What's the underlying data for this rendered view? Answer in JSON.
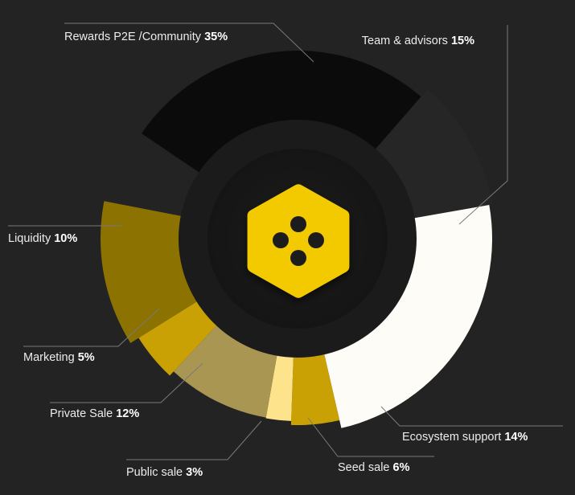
{
  "chart_data": {
    "type": "pie",
    "variant": "donut",
    "slices": [
      {
        "label": "Rewards P2E /Community",
        "value": 35,
        "display": "35%",
        "color": "#0b0b0b"
      },
      {
        "label": "Team & advisors",
        "value": 15,
        "display": "15%",
        "color": "#262626"
      },
      {
        "label": "Ecosystem support",
        "value": 14,
        "display": "14%",
        "color": "#fdfcf6"
      },
      {
        "label": "Seed sale",
        "value": 6,
        "display": "6%",
        "color": "#c9a105"
      },
      {
        "label": "Public sale",
        "value": 3,
        "display": "3%",
        "color": "#fde38b"
      },
      {
        "label": "Private Sale",
        "value": 12,
        "display": "12%",
        "color": "#a89652"
      },
      {
        "label": "Marketing",
        "value": 5,
        "display": "5%",
        "color": "#c9a105"
      },
      {
        "label": "Liquidity",
        "value": 10,
        "display": "10%",
        "color": "#8c7200"
      }
    ]
  },
  "logo": {
    "name": "hexagon-dots-logo",
    "color": "#f3ca06"
  }
}
